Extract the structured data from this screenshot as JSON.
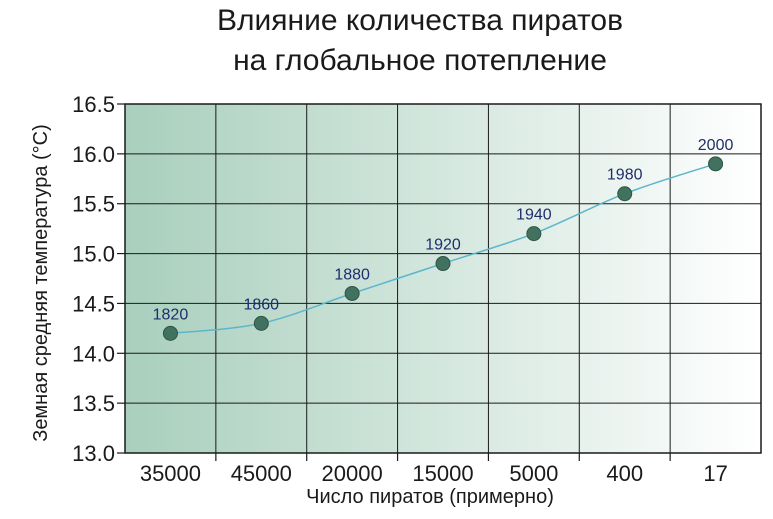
{
  "chart_data": {
    "type": "line",
    "title": [
      "Влияние количества пиратов",
      "на глобальное потепление"
    ],
    "xlabel": "Число пиратов (примерно)",
    "ylabel": "Земная средняя температура (°C)",
    "categories": [
      "35000",
      "45000",
      "20000",
      "15000",
      "5000",
      "400",
      "17"
    ],
    "series": [
      {
        "values": [
          14.2,
          14.3,
          14.6,
          14.9,
          15.2,
          15.6,
          15.9
        ],
        "point_labels": [
          "1820",
          "1860",
          "1880",
          "1920",
          "1940",
          "1980",
          "2000"
        ]
      }
    ],
    "ylim": [
      13.0,
      16.5
    ],
    "yticks": [
      "13.0",
      "13.5",
      "14.0",
      "14.5",
      "15.0",
      "15.5",
      "16.0",
      "16.5"
    ],
    "grid": true,
    "colors": {
      "line": "#5bb6cc",
      "marker": "#41725f",
      "marker_stroke": "#2d5445",
      "gradient_start": "#a9cfbd",
      "gradient_end": "#ffffff"
    }
  }
}
